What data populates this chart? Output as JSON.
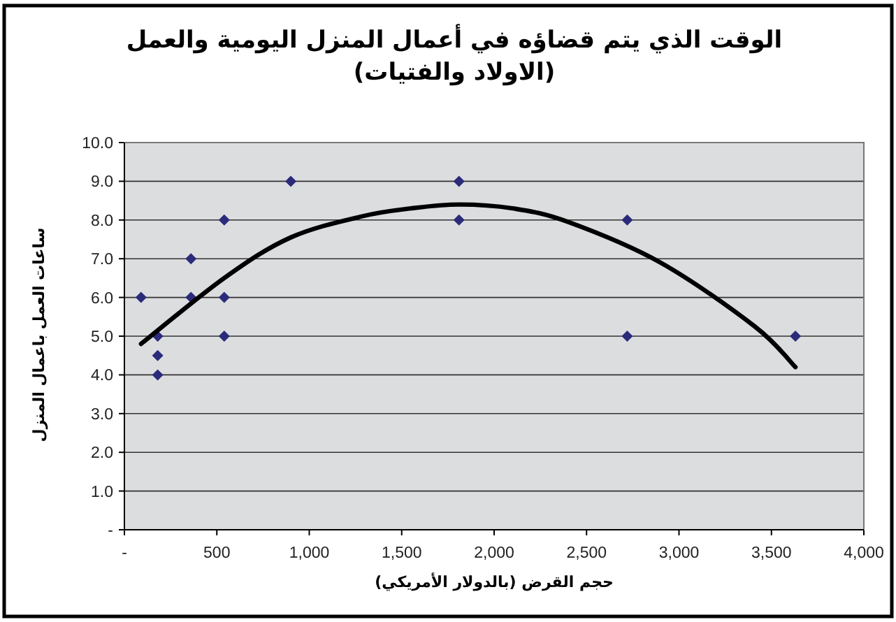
{
  "chart_data": {
    "type": "scatter",
    "title": "الوقت الذي يتم قضاؤه في أعمال المنزل اليومية والعمل (الاولاد والفتيات)",
    "xlabel": "حجم القرض (بالدولار الأمريكي)",
    "ylabel": "ساعات العمل باعمال المنزل",
    "xlim": [
      0,
      4000
    ],
    "ylim": [
      0,
      10
    ],
    "xticks": [
      {
        "value": 0,
        "label": "-"
      },
      500,
      {
        "value": 1000,
        "label": "1,000"
      },
      {
        "value": 1500,
        "label": "1,500"
      },
      {
        "value": 2000,
        "label": "2,000"
      },
      {
        "value": 2500,
        "label": "2,500"
      },
      {
        "value": 3000,
        "label": "3,000"
      },
      {
        "value": 3500,
        "label": "3,500"
      },
      {
        "value": 4000,
        "label": "4,000"
      }
    ],
    "yticks": [
      {
        "value": 0,
        "label": "-"
      },
      {
        "value": 1,
        "label": "1.0"
      },
      {
        "value": 2,
        "label": "2.0"
      },
      {
        "value": 3,
        "label": "3.0"
      },
      {
        "value": 4,
        "label": "4.0"
      },
      {
        "value": 5,
        "label": "5.0"
      },
      {
        "value": 6,
        "label": "6.0"
      },
      {
        "value": 7,
        "label": "7.0"
      },
      {
        "value": 8,
        "label": "8.0"
      },
      {
        "value": 9,
        "label": "9.0"
      },
      {
        "value": 10,
        "label": "10.0"
      }
    ],
    "grid": "y",
    "series": [
      {
        "color": "#2b2b7a",
        "marker": "diamond",
        "x": [
          90,
          180,
          180,
          180,
          360,
          360,
          540,
          540,
          540,
          900,
          1810,
          1810,
          2720,
          2720,
          3630
        ],
        "values": [
          6,
          5,
          4.5,
          4,
          7,
          6,
          8,
          6,
          5,
          9,
          9,
          8,
          8,
          5,
          5
        ]
      },
      {
        "type": "line",
        "color": "#000000",
        "marker": "none",
        "line_style": "solid",
        "x": [
          90,
          540,
          900,
          1290,
          1550,
          1810,
          2100,
          2400,
          2900,
          3410,
          3630
        ],
        "values": [
          4.8,
          6.5,
          7.55,
          8.1,
          8.3,
          8.4,
          8.3,
          7.95,
          6.9,
          5.25,
          4.2
        ]
      }
    ]
  }
}
